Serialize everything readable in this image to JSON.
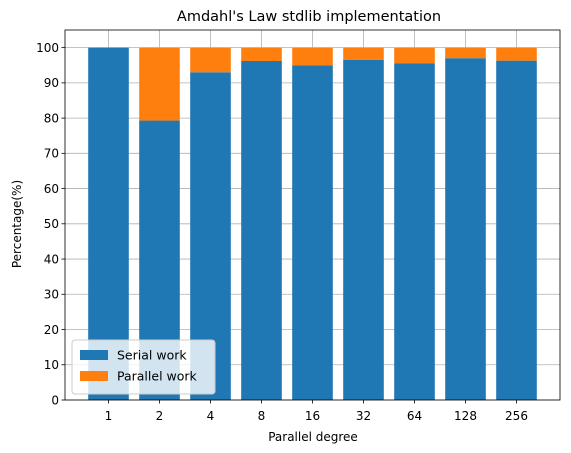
{
  "chart_data": {
    "type": "bar",
    "stacked": true,
    "title": "Amdahl's Law stdlib implementation",
    "xlabel": "Parallel degree",
    "ylabel": "Percentage(%)",
    "categories": [
      "1",
      "2",
      "4",
      "8",
      "16",
      "32",
      "64",
      "128",
      "256"
    ],
    "series": [
      {
        "name": "Serial work",
        "color": "#1f77b4",
        "values": [
          100,
          79.3,
          93,
          96.2,
          95,
          96.5,
          95.5,
          97,
          96.3
        ]
      },
      {
        "name": "Parallel work",
        "color": "#ff7f0e",
        "values": [
          0,
          20.7,
          7,
          3.8,
          5,
          3.5,
          4.5,
          3,
          3.7
        ]
      }
    ],
    "ylim": [
      0,
      105
    ],
    "yticks": [
      0,
      10,
      20,
      30,
      40,
      50,
      60,
      70,
      80,
      90,
      100
    ],
    "grid": true,
    "legend_position": "lower-left"
  }
}
